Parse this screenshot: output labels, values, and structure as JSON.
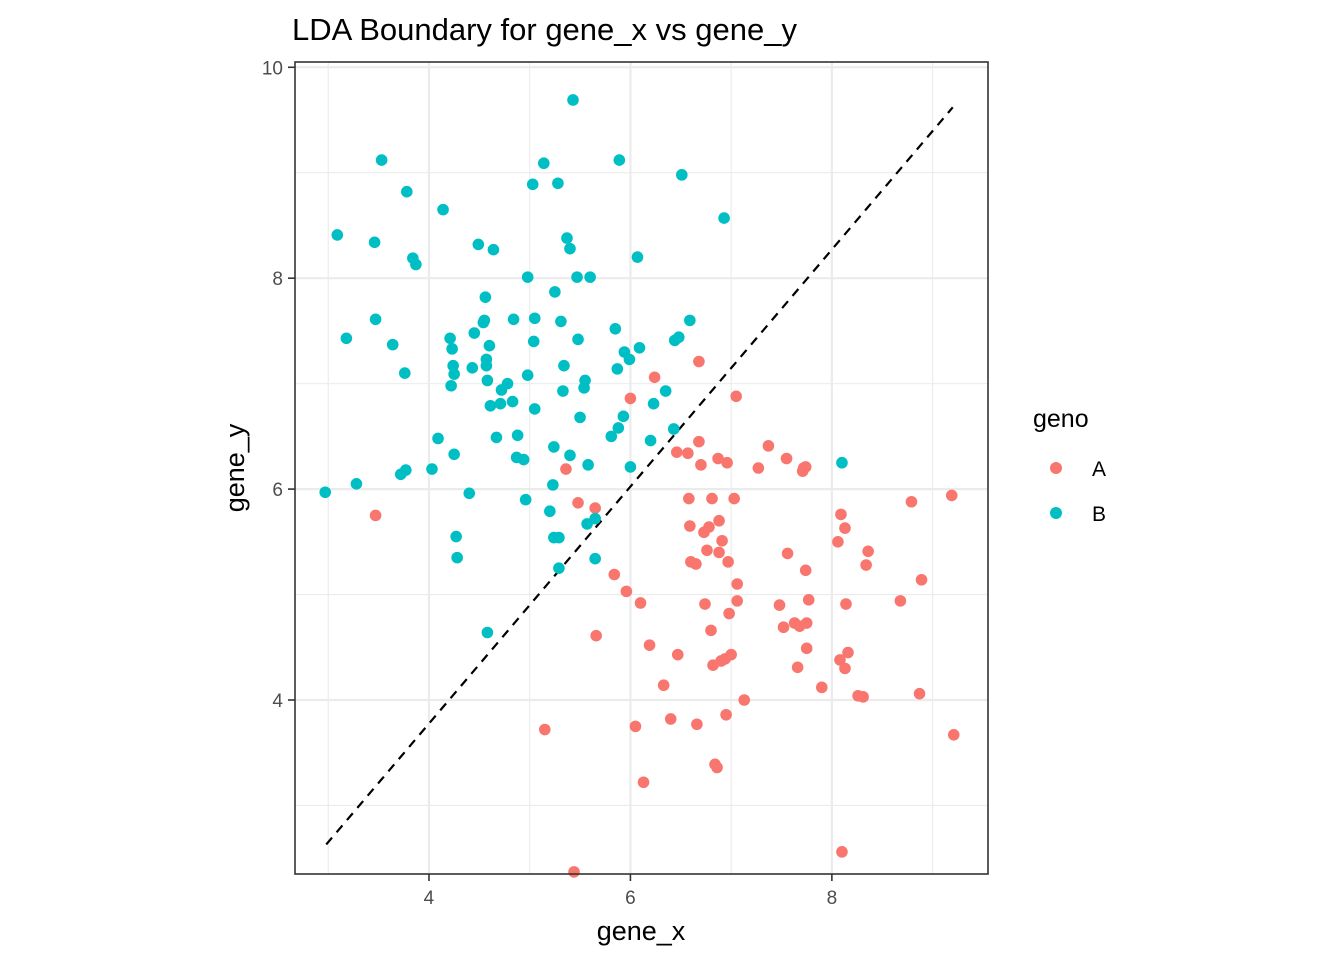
{
  "chart_data": {
    "type": "scatter",
    "title": "LDA Boundary for gene_x vs gene_y",
    "xlabel": "gene_x",
    "ylabel": "gene_y",
    "xlim": [
      2.67,
      9.55
    ],
    "ylim": [
      2.35,
      10.05
    ],
    "x_ticks": [
      4,
      6,
      8
    ],
    "y_ticks": [
      4,
      6,
      8,
      10
    ],
    "x_tick_labels": [
      "4",
      "6",
      "8"
    ],
    "y_tick_labels": [
      "4",
      "6",
      "8",
      "10"
    ],
    "grid": true,
    "legend": {
      "title": "geno",
      "position": "right",
      "entries": [
        {
          "label": "A",
          "color": "#F8766D"
        },
        {
          "label": "B",
          "color": "#00BFC4"
        }
      ]
    },
    "boundary_line": {
      "style": "dashed",
      "color": "#000000",
      "x": [
        2.98,
        9.2
      ],
      "y": [
        2.63,
        9.62
      ]
    },
    "series": [
      {
        "name": "A",
        "color": "#F8766D",
        "points": [
          [
            3.47,
            5.75
          ],
          [
            5.44,
            2.37
          ],
          [
            5.36,
            6.19
          ],
          [
            5.48,
            5.87
          ],
          [
            5.65,
            5.82
          ],
          [
            5.66,
            4.61
          ],
          [
            5.15,
            3.72
          ],
          [
            5.84,
            5.19
          ],
          [
            5.96,
            5.03
          ],
          [
            6.0,
            6.86
          ],
          [
            6.1,
            4.92
          ],
          [
            6.19,
            4.52
          ],
          [
            6.24,
            7.06
          ],
          [
            6.33,
            4.14
          ],
          [
            6.05,
            3.75
          ],
          [
            6.13,
            3.22
          ],
          [
            6.4,
            3.82
          ],
          [
            6.46,
            6.35
          ],
          [
            6.47,
            4.43
          ],
          [
            6.57,
            6.34
          ],
          [
            6.58,
            5.91
          ],
          [
            6.59,
            5.65
          ],
          [
            6.6,
            5.31
          ],
          [
            6.65,
            5.29
          ],
          [
            6.66,
            3.77
          ],
          [
            6.68,
            6.45
          ],
          [
            6.68,
            7.21
          ],
          [
            6.7,
            6.23
          ],
          [
            6.73,
            5.59
          ],
          [
            6.74,
            4.91
          ],
          [
            6.76,
            5.42
          ],
          [
            6.78,
            5.64
          ],
          [
            6.8,
            4.66
          ],
          [
            6.81,
            5.91
          ],
          [
            6.82,
            4.33
          ],
          [
            6.84,
            3.39
          ],
          [
            6.86,
            3.36
          ],
          [
            6.87,
            6.29
          ],
          [
            6.88,
            5.7
          ],
          [
            6.88,
            5.4
          ],
          [
            6.9,
            4.37
          ],
          [
            6.91,
            5.51
          ],
          [
            6.94,
            4.39
          ],
          [
            6.95,
            3.86
          ],
          [
            6.96,
            6.25
          ],
          [
            6.97,
            5.31
          ],
          [
            6.98,
            4.82
          ],
          [
            7.0,
            4.43
          ],
          [
            7.03,
            5.91
          ],
          [
            7.05,
            6.88
          ],
          [
            7.06,
            5.1
          ],
          [
            7.06,
            4.94
          ],
          [
            7.13,
            4.0
          ],
          [
            7.27,
            6.2
          ],
          [
            7.37,
            6.41
          ],
          [
            7.48,
            4.9
          ],
          [
            7.52,
            4.69
          ],
          [
            7.55,
            6.29
          ],
          [
            7.56,
            5.39
          ],
          [
            7.63,
            4.73
          ],
          [
            7.66,
            4.31
          ],
          [
            7.68,
            4.7
          ],
          [
            7.71,
            6.17
          ],
          [
            7.72,
            6.2
          ],
          [
            7.74,
            6.21
          ],
          [
            7.74,
            5.23
          ],
          [
            7.75,
            4.73
          ],
          [
            7.75,
            4.49
          ],
          [
            7.77,
            4.95
          ],
          [
            7.9,
            4.12
          ],
          [
            8.06,
            5.5
          ],
          [
            8.08,
            4.38
          ],
          [
            8.09,
            5.76
          ],
          [
            8.1,
            2.56
          ],
          [
            8.13,
            5.63
          ],
          [
            8.13,
            4.3
          ],
          [
            8.14,
            4.91
          ],
          [
            8.16,
            4.45
          ],
          [
            8.26,
            4.04
          ],
          [
            8.31,
            4.03
          ],
          [
            8.34,
            5.28
          ],
          [
            8.36,
            5.41
          ],
          [
            8.68,
            4.94
          ],
          [
            8.79,
            5.88
          ],
          [
            8.87,
            4.06
          ],
          [
            8.89,
            5.14
          ],
          [
            9.19,
            5.94
          ],
          [
            9.21,
            3.67
          ]
        ]
      },
      {
        "name": "B",
        "color": "#00BFC4",
        "points": [
          [
            2.97,
            5.97
          ],
          [
            3.09,
            8.41
          ],
          [
            3.18,
            7.43
          ],
          [
            3.28,
            6.05
          ],
          [
            3.46,
            8.34
          ],
          [
            3.47,
            7.61
          ],
          [
            3.53,
            9.12
          ],
          [
            3.64,
            7.37
          ],
          [
            3.72,
            6.14
          ],
          [
            3.76,
            7.1
          ],
          [
            3.77,
            6.18
          ],
          [
            3.78,
            8.82
          ],
          [
            3.84,
            8.19
          ],
          [
            3.87,
            8.13
          ],
          [
            4.03,
            6.19
          ],
          [
            4.09,
            6.48
          ],
          [
            4.14,
            8.65
          ],
          [
            4.21,
            7.43
          ],
          [
            4.22,
            6.98
          ],
          [
            4.23,
            7.33
          ],
          [
            4.24,
            7.17
          ],
          [
            4.25,
            7.09
          ],
          [
            4.25,
            6.33
          ],
          [
            4.27,
            5.55
          ],
          [
            4.28,
            5.35
          ],
          [
            4.4,
            5.96
          ],
          [
            4.43,
            7.15
          ],
          [
            4.45,
            7.48
          ],
          [
            4.49,
            8.32
          ],
          [
            4.54,
            7.58
          ],
          [
            4.55,
            7.6
          ],
          [
            4.56,
            7.82
          ],
          [
            4.57,
            7.17
          ],
          [
            4.57,
            7.23
          ],
          [
            4.58,
            7.03
          ],
          [
            4.58,
            4.64
          ],
          [
            4.6,
            7.36
          ],
          [
            4.61,
            6.79
          ],
          [
            4.64,
            8.27
          ],
          [
            4.67,
            6.49
          ],
          [
            4.71,
            6.81
          ],
          [
            4.72,
            6.94
          ],
          [
            4.78,
            7.0
          ],
          [
            4.83,
            6.83
          ],
          [
            4.84,
            7.61
          ],
          [
            4.87,
            6.3
          ],
          [
            4.88,
            6.51
          ],
          [
            4.94,
            6.28
          ],
          [
            4.96,
            5.9
          ],
          [
            4.98,
            7.08
          ],
          [
            4.98,
            8.01
          ],
          [
            5.03,
            8.89
          ],
          [
            5.04,
            7.4
          ],
          [
            5.05,
            6.76
          ],
          [
            5.05,
            7.62
          ],
          [
            5.14,
            9.09
          ],
          [
            5.2,
            5.79
          ],
          [
            5.23,
            6.04
          ],
          [
            5.24,
            5.54
          ],
          [
            5.24,
            6.4
          ],
          [
            5.25,
            7.87
          ],
          [
            5.28,
            8.9
          ],
          [
            5.29,
            5.54
          ],
          [
            5.29,
            5.25
          ],
          [
            5.31,
            7.59
          ],
          [
            5.33,
            6.93
          ],
          [
            5.34,
            7.17
          ],
          [
            5.37,
            8.38
          ],
          [
            5.4,
            6.32
          ],
          [
            5.4,
            8.28
          ],
          [
            5.43,
            9.69
          ],
          [
            5.47,
            8.01
          ],
          [
            5.48,
            7.42
          ],
          [
            5.5,
            6.68
          ],
          [
            5.54,
            6.96
          ],
          [
            5.55,
            7.03
          ],
          [
            5.57,
            5.67
          ],
          [
            5.58,
            6.23
          ],
          [
            5.6,
            8.01
          ],
          [
            5.65,
            5.34
          ],
          [
            5.65,
            5.72
          ],
          [
            5.81,
            6.5
          ],
          [
            5.85,
            7.52
          ],
          [
            5.87,
            7.14
          ],
          [
            5.88,
            6.58
          ],
          [
            5.89,
            9.12
          ],
          [
            5.93,
            6.69
          ],
          [
            5.94,
            7.3
          ],
          [
            5.99,
            7.23
          ],
          [
            6.0,
            6.21
          ],
          [
            6.07,
            8.2
          ],
          [
            6.09,
            7.34
          ],
          [
            6.2,
            6.46
          ],
          [
            6.23,
            6.81
          ],
          [
            6.35,
            6.93
          ],
          [
            6.43,
            6.57
          ],
          [
            6.44,
            7.41
          ],
          [
            6.48,
            7.44
          ],
          [
            6.51,
            8.98
          ],
          [
            6.59,
            7.6
          ],
          [
            6.93,
            8.57
          ],
          [
            8.1,
            6.25
          ]
        ]
      }
    ]
  }
}
